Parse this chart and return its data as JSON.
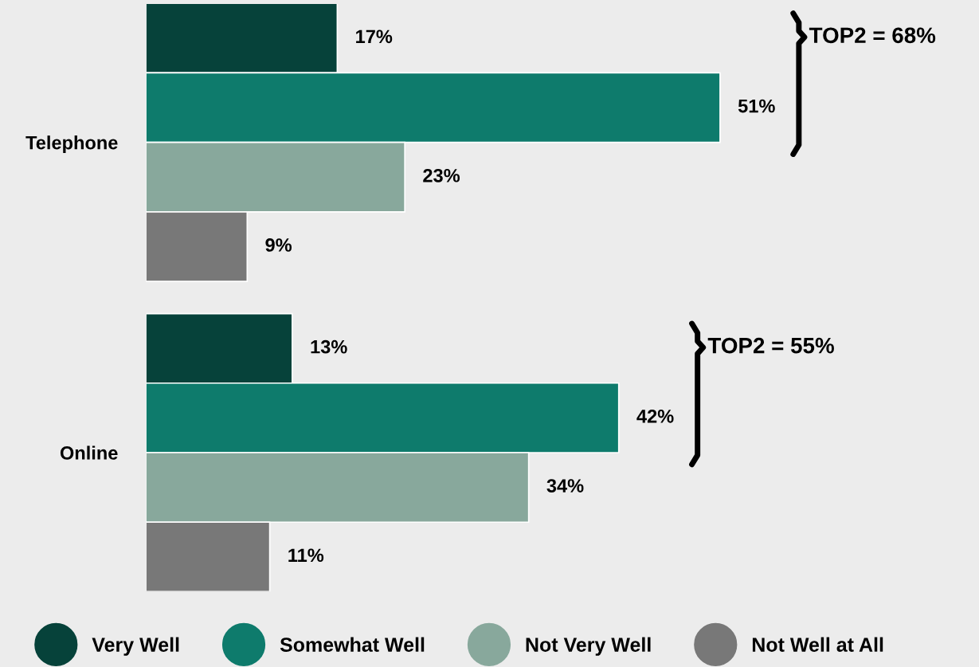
{
  "chart_data": {
    "type": "bar",
    "orientation": "horizontal",
    "categories": [
      "Telephone",
      "Online"
    ],
    "series": [
      {
        "name": "Very Well",
        "color": "#06423a",
        "values": [
          17,
          13
        ],
        "value_labels": [
          "17%",
          "13%"
        ]
      },
      {
        "name": "Somewhat Well",
        "color": "#0e7b6c",
        "values": [
          51,
          42
        ],
        "value_labels": [
          "51%",
          "42%"
        ]
      },
      {
        "name": "Not Very Well",
        "color": "#88a89c",
        "values": [
          23,
          34
        ],
        "value_labels": [
          "23%",
          "34%"
        ]
      },
      {
        "name": "Not Well at All",
        "color": "#787878",
        "values": [
          9,
          11
        ],
        "value_labels": [
          "9%",
          "11%"
        ]
      }
    ],
    "annotations": [
      "TOP2 = 68%",
      "TOP2 = 55%"
    ],
    "xlim": [
      0,
      74
    ],
    "tick_labels": "y",
    "grid": false,
    "legend": "bottom",
    "marker": "circle"
  }
}
